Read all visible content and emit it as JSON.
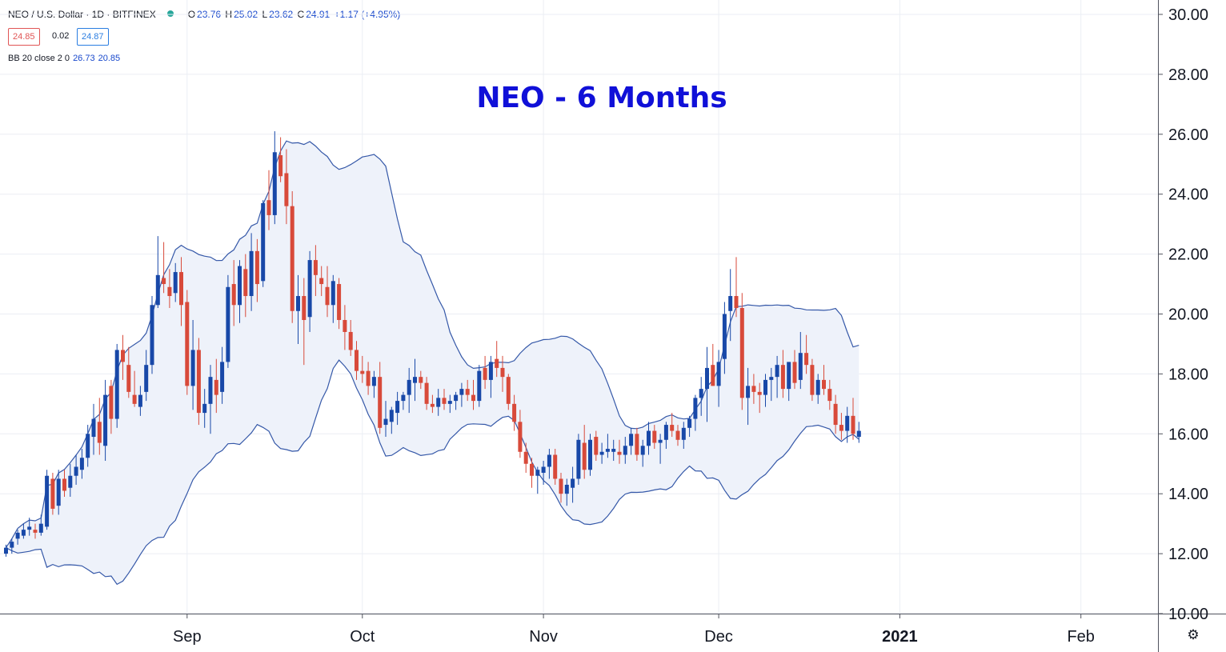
{
  "header": {
    "symbol": "NEO / U.S. Dollar · 1D · BITFINEX",
    "open_label": "O",
    "open": "23.76",
    "high_label": "H",
    "high": "25.02",
    "low_label": "L",
    "low": "23.62",
    "close_label": "C",
    "close": "24.91",
    "change": "+1.17 (+4.95%)",
    "sell_price": "24.85",
    "spread": "0.02",
    "buy_price": "24.87",
    "indicator_label": "BB 20 close 2 0",
    "bb_upper": "26.73",
    "bb_lower": "20.85"
  },
  "chart_data": {
    "type": "candlestick",
    "title": "NEO - 6 Months",
    "ylim": [
      10,
      30
    ],
    "y_ticks": [
      "10.00",
      "12.00",
      "14.00",
      "16.00",
      "18.00",
      "20.00",
      "22.00",
      "24.00",
      "26.00",
      "28.00",
      "30.00"
    ],
    "y_tick_values": [
      10,
      12,
      14,
      16,
      18,
      20,
      22,
      24,
      26,
      28,
      30
    ],
    "x_ticks": [
      {
        "label": "Sep",
        "index": 31
      },
      {
        "label": "Oct",
        "index": 61
      },
      {
        "label": "Nov",
        "index": 92
      },
      {
        "label": "Dec",
        "index": 122
      },
      {
        "label": "2021",
        "index": 153,
        "bold": true
      },
      {
        "label": "Feb",
        "index": 184
      }
    ],
    "grid": true,
    "colors": {
      "up": "#1848a8",
      "down": "#d84a3a",
      "bb_line": "#3558a8",
      "bb_fill": "#eef2fa",
      "title": "#1010d8",
      "grid": "#ebeef4"
    },
    "candles": [
      [
        12.0,
        12.3,
        11.9,
        12.2
      ],
      [
        12.2,
        12.5,
        12.0,
        12.4
      ],
      [
        12.5,
        12.8,
        12.3,
        12.7
      ],
      [
        12.6,
        13.0,
        12.5,
        12.8
      ],
      [
        12.8,
        13.2,
        12.6,
        12.9
      ],
      [
        12.8,
        13.0,
        12.5,
        12.7
      ],
      [
        12.7,
        13.3,
        12.6,
        13.0
      ],
      [
        12.9,
        14.8,
        12.8,
        14.6
      ],
      [
        14.5,
        14.7,
        13.3,
        13.5
      ],
      [
        13.6,
        14.8,
        13.3,
        14.5
      ],
      [
        14.5,
        14.8,
        13.9,
        14.1
      ],
      [
        14.2,
        15.0,
        13.9,
        14.6
      ],
      [
        14.6,
        15.3,
        14.3,
        14.9
      ],
      [
        14.8,
        15.5,
        14.5,
        15.2
      ],
      [
        15.2,
        16.3,
        14.9,
        16.0
      ],
      [
        15.9,
        17.0,
        15.3,
        16.5
      ],
      [
        16.4,
        17.2,
        15.3,
        15.7
      ],
      [
        15.6,
        17.8,
        15.1,
        17.3
      ],
      [
        17.6,
        17.8,
        16.0,
        16.5
      ],
      [
        16.5,
        19.0,
        16.2,
        18.8
      ],
      [
        18.8,
        19.3,
        17.8,
        18.4
      ],
      [
        18.3,
        18.9,
        17.2,
        17.4
      ],
      [
        17.3,
        18.1,
        16.9,
        17.0
      ],
      [
        16.9,
        17.6,
        16.6,
        17.3
      ],
      [
        17.4,
        18.8,
        17.1,
        18.3
      ],
      [
        18.3,
        20.6,
        18.0,
        20.3
      ],
      [
        20.3,
        22.6,
        20.2,
        21.3
      ],
      [
        21.2,
        22.4,
        20.7,
        21.0
      ],
      [
        20.9,
        21.5,
        20.2,
        20.6
      ],
      [
        20.7,
        21.7,
        20.4,
        21.4
      ],
      [
        21.4,
        21.9,
        19.6,
        20.3
      ],
      [
        20.4,
        20.8,
        17.3,
        17.6
      ],
      [
        17.6,
        19.8,
        16.8,
        18.8
      ],
      [
        18.8,
        19.2,
        16.3,
        16.7
      ],
      [
        16.7,
        17.5,
        16.2,
        17.0
      ],
      [
        17.0,
        18.3,
        16.0,
        17.9
      ],
      [
        17.8,
        18.5,
        16.7,
        17.3
      ],
      [
        17.4,
        18.9,
        17.0,
        18.4
      ],
      [
        18.4,
        21.3,
        18.2,
        20.9
      ],
      [
        21.0,
        21.8,
        19.6,
        20.3
      ],
      [
        20.3,
        21.8,
        19.7,
        21.6
      ],
      [
        21.5,
        22.0,
        19.9,
        20.6
      ],
      [
        20.6,
        22.7,
        20.1,
        22.1
      ],
      [
        22.1,
        22.5,
        20.4,
        21.0
      ],
      [
        21.1,
        23.8,
        20.9,
        23.7
      ],
      [
        23.8,
        24.8,
        22.8,
        23.3
      ],
      [
        23.3,
        26.1,
        23.0,
        25.4
      ],
      [
        25.3,
        25.9,
        24.4,
        24.6
      ],
      [
        24.7,
        25.5,
        23.0,
        23.6
      ],
      [
        23.6,
        24.1,
        19.7,
        20.1
      ],
      [
        20.1,
        21.3,
        19.0,
        20.6
      ],
      [
        20.6,
        21.2,
        18.3,
        19.8
      ],
      [
        19.9,
        22.1,
        19.4,
        21.8
      ],
      [
        21.8,
        22.3,
        20.6,
        21.3
      ],
      [
        21.2,
        21.6,
        20.6,
        21.0
      ],
      [
        20.9,
        21.6,
        19.9,
        20.3
      ],
      [
        20.3,
        21.3,
        19.7,
        21.1
      ],
      [
        21.0,
        21.2,
        19.5,
        19.8
      ],
      [
        19.8,
        20.3,
        18.8,
        19.4
      ],
      [
        19.4,
        19.8,
        18.6,
        18.8
      ],
      [
        18.8,
        19.1,
        17.8,
        18.1
      ],
      [
        18.1,
        18.6,
        17.7,
        18.0
      ],
      [
        18.1,
        18.4,
        17.3,
        17.6
      ],
      [
        17.6,
        18.1,
        17.2,
        17.9
      ],
      [
        17.9,
        18.4,
        16.0,
        16.2
      ],
      [
        16.3,
        17.1,
        15.9,
        16.5
      ],
      [
        16.4,
        16.9,
        16.0,
        16.8
      ],
      [
        16.7,
        17.4,
        16.3,
        17.1
      ],
      [
        17.1,
        17.4,
        16.8,
        17.3
      ],
      [
        17.3,
        18.2,
        16.7,
        17.8
      ],
      [
        17.7,
        18.5,
        17.1,
        17.9
      ],
      [
        17.9,
        18.1,
        17.5,
        17.7
      ],
      [
        17.7,
        17.9,
        16.8,
        17.0
      ],
      [
        17.0,
        17.3,
        16.7,
        16.9
      ],
      [
        16.9,
        17.5,
        16.6,
        17.2
      ],
      [
        17.2,
        17.5,
        16.8,
        17.0
      ],
      [
        17.0,
        17.3,
        16.7,
        17.1
      ],
      [
        17.1,
        17.4,
        16.8,
        17.3
      ],
      [
        17.3,
        17.7,
        16.9,
        17.5
      ],
      [
        17.5,
        17.8,
        17.1,
        17.3
      ],
      [
        17.3,
        17.8,
        16.8,
        17.1
      ],
      [
        17.1,
        18.3,
        16.9,
        18.1
      ],
      [
        18.2,
        18.6,
        17.5,
        17.8
      ],
      [
        17.8,
        18.6,
        17.2,
        18.4
      ],
      [
        18.5,
        19.1,
        17.9,
        18.2
      ],
      [
        18.2,
        18.6,
        17.4,
        17.9
      ],
      [
        17.9,
        18.0,
        16.8,
        17.0
      ],
      [
        17.0,
        17.3,
        16.1,
        16.4
      ],
      [
        16.4,
        16.8,
        15.2,
        15.4
      ],
      [
        15.4,
        15.7,
        14.7,
        15.0
      ],
      [
        15.0,
        15.2,
        14.2,
        14.6
      ],
      [
        14.6,
        14.9,
        14.0,
        14.8
      ],
      [
        14.7,
        15.1,
        14.3,
        14.9
      ],
      [
        14.9,
        15.5,
        14.5,
        15.3
      ],
      [
        15.3,
        15.5,
        14.3,
        14.5
      ],
      [
        14.5,
        14.7,
        13.7,
        14.0
      ],
      [
        14.0,
        14.5,
        13.6,
        14.3
      ],
      [
        14.2,
        14.9,
        13.7,
        14.5
      ],
      [
        14.5,
        16.0,
        14.3,
        15.8
      ],
      [
        15.7,
        16.3,
        14.5,
        14.8
      ],
      [
        14.8,
        16.0,
        14.6,
        15.8
      ],
      [
        15.9,
        16.1,
        15.1,
        15.3
      ],
      [
        15.3,
        15.7,
        15.0,
        15.4
      ],
      [
        15.4,
        16.0,
        15.2,
        15.5
      ],
      [
        15.4,
        15.8,
        15.1,
        15.5
      ],
      [
        15.4,
        15.8,
        15.0,
        15.3
      ],
      [
        15.3,
        15.9,
        15.0,
        15.6
      ],
      [
        15.6,
        16.2,
        15.3,
        16.0
      ],
      [
        16.0,
        16.2,
        15.1,
        15.3
      ],
      [
        15.3,
        15.8,
        14.9,
        15.6
      ],
      [
        15.6,
        16.4,
        15.3,
        16.1
      ],
      [
        16.1,
        16.3,
        15.5,
        15.7
      ],
      [
        15.7,
        16.0,
        15.0,
        15.8
      ],
      [
        15.8,
        16.4,
        15.5,
        16.3
      ],
      [
        16.3,
        16.7,
        15.9,
        16.1
      ],
      [
        16.1,
        16.3,
        15.6,
        15.8
      ],
      [
        15.8,
        16.4,
        15.5,
        16.2
      ],
      [
        16.2,
        16.6,
        15.9,
        16.5
      ],
      [
        16.5,
        17.3,
        16.1,
        17.2
      ],
      [
        17.2,
        17.9,
        16.6,
        17.5
      ],
      [
        17.5,
        18.9,
        16.4,
        18.2
      ],
      [
        18.3,
        19.0,
        17.6,
        17.6
      ],
      [
        17.6,
        18.8,
        16.9,
        18.4
      ],
      [
        18.5,
        20.4,
        18.0,
        20.0
      ],
      [
        20.1,
        21.5,
        19.1,
        20.6
      ],
      [
        20.6,
        21.9,
        19.9,
        20.2
      ],
      [
        20.2,
        20.7,
        16.8,
        17.2
      ],
      [
        17.2,
        18.2,
        16.3,
        17.6
      ],
      [
        17.6,
        18.0,
        17.0,
        17.4
      ],
      [
        17.4,
        17.7,
        16.7,
        17.3
      ],
      [
        17.3,
        18.0,
        16.9,
        17.8
      ],
      [
        17.8,
        18.2,
        17.1,
        17.9
      ],
      [
        17.9,
        18.6,
        17.2,
        18.3
      ],
      [
        18.3,
        18.8,
        17.2,
        17.5
      ],
      [
        17.5,
        18.2,
        17.1,
        18.4
      ],
      [
        18.4,
        18.8,
        17.5,
        17.7
      ],
      [
        17.8,
        19.4,
        17.5,
        18.7
      ],
      [
        18.7,
        19.3,
        18.0,
        18.3
      ],
      [
        18.3,
        18.5,
        17.1,
        17.3
      ],
      [
        17.3,
        18.0,
        17.0,
        17.8
      ],
      [
        17.8,
        18.3,
        17.3,
        17.5
      ],
      [
        17.5,
        17.8,
        16.8,
        17.1
      ],
      [
        17.0,
        17.3,
        16.0,
        16.3
      ],
      [
        16.3,
        16.7,
        15.8,
        16.1
      ],
      [
        16.1,
        16.9,
        15.7,
        16.6
      ],
      [
        16.6,
        17.2,
        15.8,
        16.0
      ],
      [
        15.9,
        16.4,
        15.7,
        16.1
      ]
    ]
  }
}
